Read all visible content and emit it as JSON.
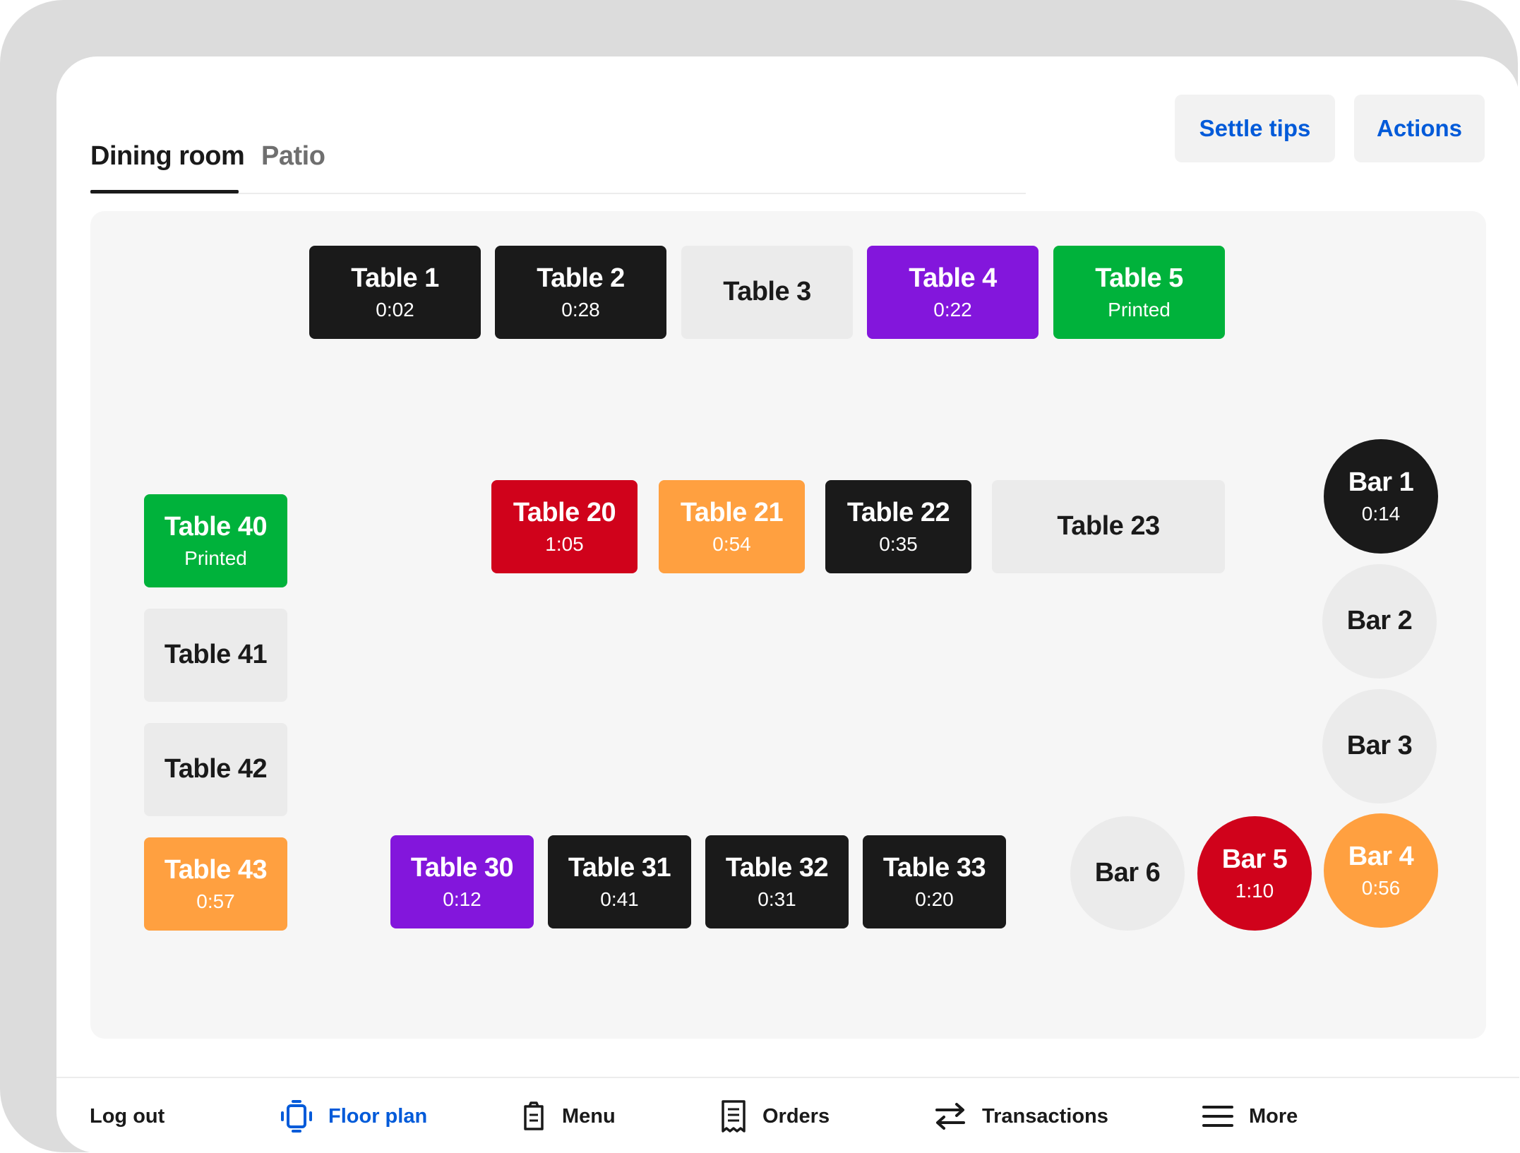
{
  "tabs": [
    {
      "label": "Dining room",
      "active": true
    },
    {
      "label": "Patio",
      "active": false
    }
  ],
  "header": {
    "settle_tips_label": "Settle tips",
    "actions_label": "Actions"
  },
  "colors": {
    "accent": "#005ad9",
    "black": "#1a1a1a",
    "gray": "#ebebeb",
    "purple": "#8316dc",
    "green": "#00b23b",
    "red": "#d0021b",
    "orange": "#ffa040"
  },
  "floor": {
    "table_1": {
      "name": "Table 1",
      "status": "0:02"
    },
    "table_2": {
      "name": "Table 2",
      "status": "0:28"
    },
    "table_3": {
      "name": "Table 3",
      "status": ""
    },
    "table_4": {
      "name": "Table 4",
      "status": "0:22"
    },
    "table_5": {
      "name": "Table 5",
      "status": "Printed"
    },
    "table_20": {
      "name": "Table 20",
      "status": "1:05"
    },
    "table_21": {
      "name": "Table 21",
      "status": "0:54"
    },
    "table_22": {
      "name": "Table 22",
      "status": "0:35"
    },
    "table_23": {
      "name": "Table 23",
      "status": ""
    },
    "table_30": {
      "name": "Table 30",
      "status": "0:12"
    },
    "table_31": {
      "name": "Table 31",
      "status": "0:41"
    },
    "table_32": {
      "name": "Table 32",
      "status": "0:31"
    },
    "table_33": {
      "name": "Table 33",
      "status": "0:20"
    },
    "table_40": {
      "name": "Table 40",
      "status": "Printed"
    },
    "table_41": {
      "name": "Table 41",
      "status": ""
    },
    "table_42": {
      "name": "Table 42",
      "status": ""
    },
    "table_43": {
      "name": "Table 43",
      "status": "0:57"
    },
    "bar_1": {
      "name": "Bar 1",
      "status": "0:14"
    },
    "bar_2": {
      "name": "Bar 2",
      "status": ""
    },
    "bar_3": {
      "name": "Bar 3",
      "status": ""
    },
    "bar_4": {
      "name": "Bar 4",
      "status": "0:56"
    },
    "bar_5": {
      "name": "Bar 5",
      "status": "1:10"
    },
    "bar_6": {
      "name": "Bar 6",
      "status": ""
    }
  },
  "nav": [
    {
      "label": "Log out",
      "icon": "none"
    },
    {
      "label": "Floor plan",
      "icon": "floor-plan-icon",
      "active": true
    },
    {
      "label": "Menu",
      "icon": "clipboard-icon"
    },
    {
      "label": "Orders",
      "icon": "receipt-icon"
    },
    {
      "label": "Transactions",
      "icon": "swap-arrows-icon"
    },
    {
      "label": "More",
      "icon": "hamburger-icon"
    }
  ]
}
